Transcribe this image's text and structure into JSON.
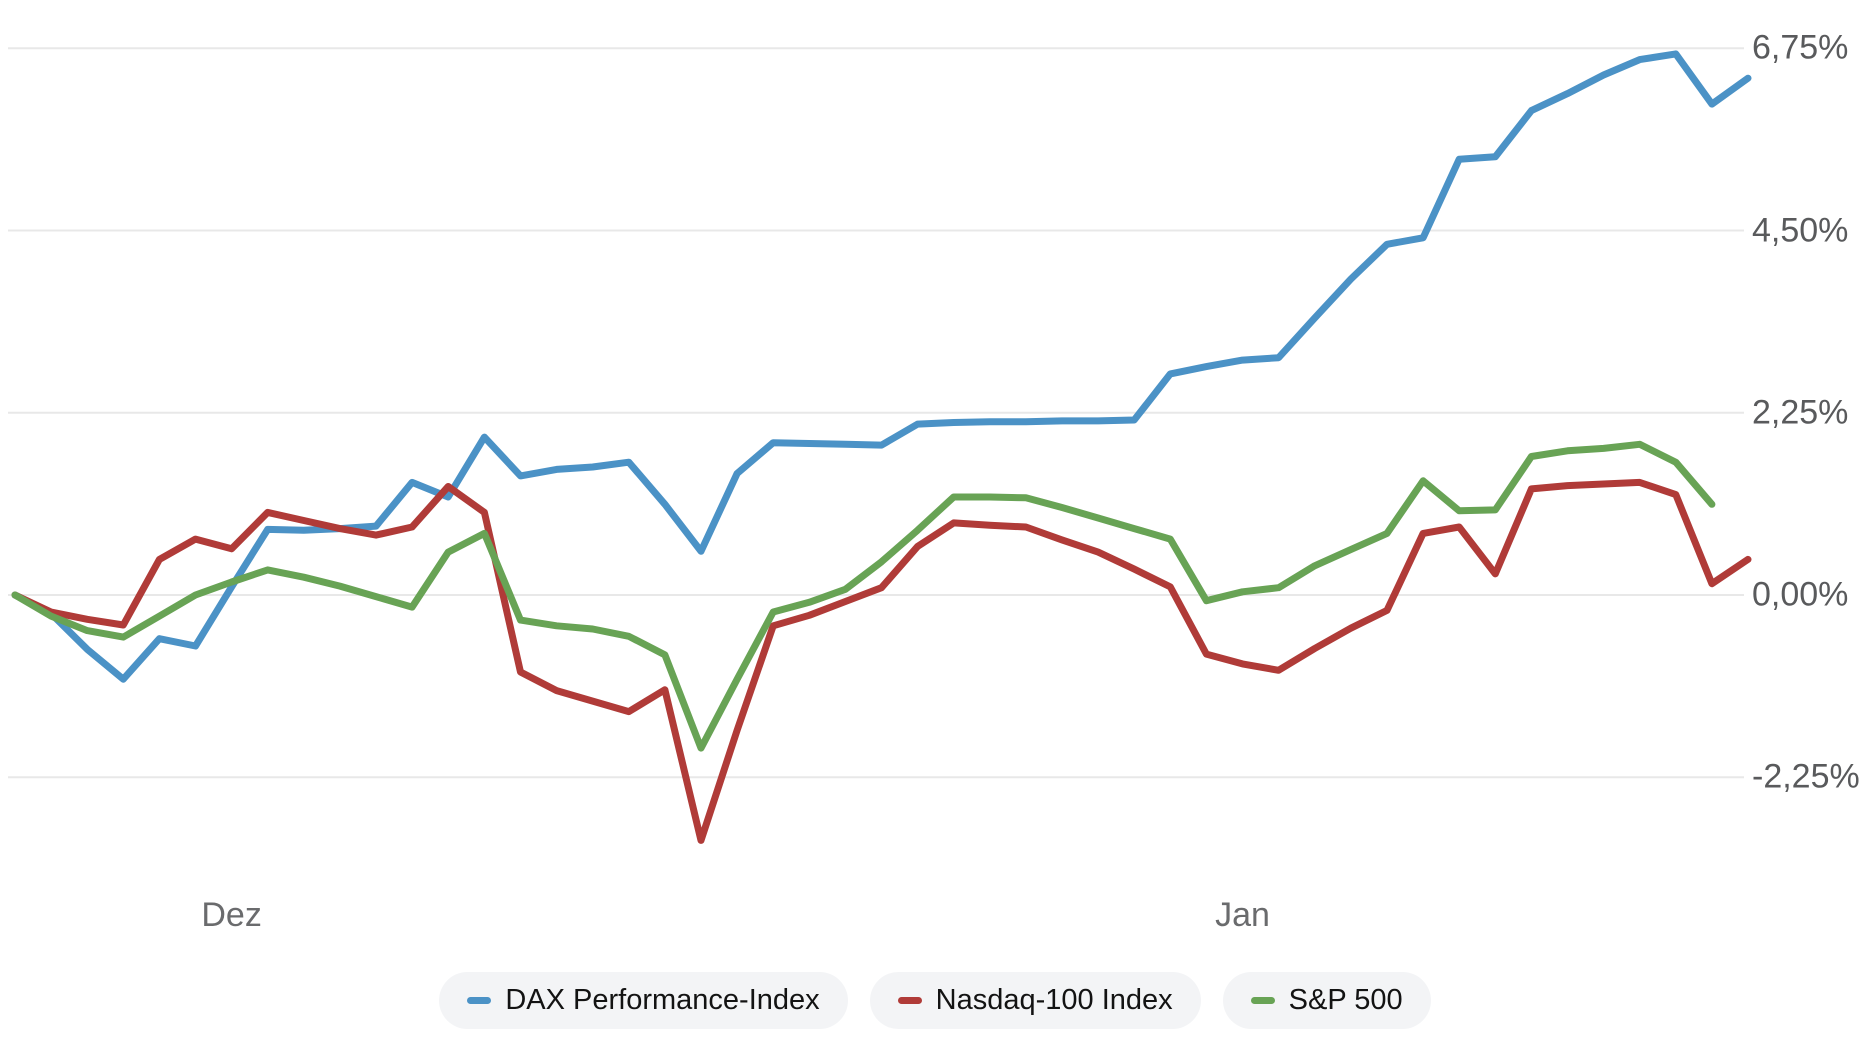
{
  "chart_data": {
    "type": "line",
    "title": "",
    "xlabel": "",
    "ylabel": "",
    "grid": true,
    "legend_position": "bottom",
    "x_axis": {
      "tick_labels": [
        {
          "label": "Dez",
          "index": 6
        },
        {
          "label": "Jan",
          "index": 34
        }
      ]
    },
    "y_axis": {
      "unit": "%",
      "ylim": [
        -3.3,
        7.0
      ],
      "tick_values": [
        6.75,
        4.5,
        2.25,
        0,
        -2.25
      ],
      "tick_labels": [
        "6,75%",
        "4,50%",
        "2,25%",
        "0,00%",
        "-2,25%"
      ]
    },
    "series": [
      {
        "name": "DAX Performance-Index",
        "color": "#4b92c6",
        "values": [
          0.0,
          -0.23,
          -0.67,
          -1.04,
          -0.54,
          -0.63,
          0.1,
          0.81,
          0.8,
          0.82,
          0.85,
          1.39,
          1.21,
          1.95,
          1.47,
          1.55,
          1.58,
          1.64,
          1.12,
          0.54,
          1.5,
          1.88,
          1.87,
          1.86,
          1.85,
          2.11,
          2.13,
          2.14,
          2.14,
          2.15,
          2.15,
          2.16,
          2.73,
          2.82,
          2.9,
          2.93,
          3.42,
          3.9,
          4.33,
          4.41,
          5.38,
          5.41,
          5.98,
          6.19,
          6.42,
          6.61,
          6.68,
          6.06,
          6.38
        ]
      },
      {
        "name": "Nasdaq-100 Index",
        "color": "#b03b38",
        "values": [
          0.0,
          -0.21,
          -0.3,
          -0.37,
          0.44,
          0.69,
          0.57,
          1.02,
          0.92,
          0.82,
          0.74,
          0.84,
          1.34,
          1.02,
          -0.95,
          -1.18,
          -1.31,
          -1.44,
          -1.17,
          -3.03,
          -1.67,
          -0.38,
          -0.25,
          -0.08,
          0.09,
          0.6,
          0.89,
          0.86,
          0.84,
          0.68,
          0.53,
          0.32,
          0.1,
          -0.73,
          -0.85,
          -0.93,
          -0.66,
          -0.41,
          -0.19,
          0.76,
          0.84,
          0.26,
          1.31,
          1.35,
          1.37,
          1.39,
          1.24,
          0.14,
          0.44
        ]
      },
      {
        "name": "S&P 500",
        "color": "#68a355",
        "values": [
          0.0,
          -0.26,
          -0.44,
          -0.52,
          -0.26,
          0.0,
          0.16,
          0.31,
          0.22,
          0.11,
          -0.02,
          -0.15,
          0.53,
          0.76,
          -0.31,
          -0.38,
          -0.42,
          -0.51,
          -0.74,
          -1.89,
          -1.04,
          -0.21,
          -0.09,
          0.07,
          0.41,
          0.8,
          1.21,
          1.21,
          1.2,
          1.08,
          0.95,
          0.82,
          0.69,
          -0.07,
          0.04,
          0.09,
          0.36,
          0.56,
          0.76,
          1.41,
          1.04,
          1.05,
          1.71,
          1.78,
          1.81,
          1.86,
          1.64,
          1.12
        ]
      }
    ]
  },
  "legend": {
    "items": [
      {
        "label": "DAX Performance-Index",
        "color": "#4b92c6"
      },
      {
        "label": "Nasdaq-100 Index",
        "color": "#b03b38"
      },
      {
        "label": "S&P 500",
        "color": "#68a355"
      }
    ]
  },
  "colors": {
    "background": "#ffffff",
    "grid": "#e8e8e8",
    "y_axis_text": "#595a5c",
    "x_axis_text": "#6a6b6d",
    "legend_bg": "#f3f4f6",
    "legend_text": "#131313"
  }
}
